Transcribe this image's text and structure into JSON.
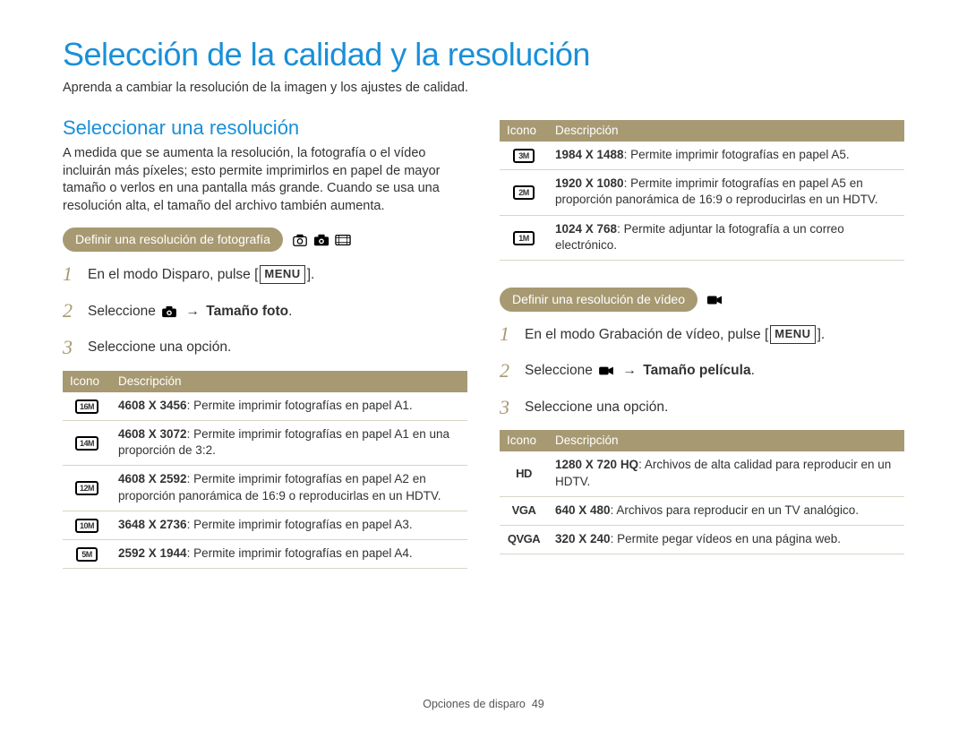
{
  "colors": {
    "accent_blue": "#1a8fd8",
    "tan": "#a79972",
    "border": "#d9d4c5",
    "text": "#333333",
    "bg": "#ffffff"
  },
  "title": "Selección de la calidad y la resolución",
  "subtitle": "Aprenda a cambiar la resolución de la imagen y los ajustes de calidad.",
  "section_heading": "Seleccionar una resolución",
  "section_body": "A medida que se aumenta la resolución, la fotografía o el vídeo incluirán más píxeles; esto permite imprimirlos en papel de mayor tamaño o verlos en una pantalla más grande. Cuando se usa una resolución alta, el tamaño del archivo también aumenta.",
  "photo": {
    "pill": "Definir una resolución de fotografía",
    "steps": {
      "s1_prefix": "En el modo Disparo, pulse [",
      "s1_menu": "MENU",
      "s1_suffix": "].",
      "s2_prefix": "Seleccione ",
      "s2_arrow": "→",
      "s2_bold": "Tamaño foto",
      "s2_suffix": ".",
      "s3": "Seleccione una opción."
    },
    "header_icono": "Icono",
    "header_desc": "Descripción",
    "rows": [
      {
        "icon": "16M",
        "bold": "4608 X 3456",
        "rest": ": Permite imprimir fotografías en papel A1."
      },
      {
        "icon": "14M",
        "bold": "4608 X 3072",
        "rest": ": Permite imprimir fotografías en papel A1 en una proporción de 3:2."
      },
      {
        "icon": "12M",
        "bold": "4608 X 2592",
        "rest": ": Permite imprimir fotografías en papel A2 en proporción panorámica de 16:9 o reproducirlas en un HDTV."
      },
      {
        "icon": "10M",
        "bold": "3648 X 2736",
        "rest": ": Permite imprimir fotografías en papel A3."
      },
      {
        "icon": "5M",
        "bold": "2592 X 1944",
        "rest": ": Permite imprimir fotografías en papel A4."
      }
    ]
  },
  "photo_cont": {
    "header_icono": "Icono",
    "header_desc": "Descripción",
    "rows": [
      {
        "icon": "3M",
        "bold": "1984 X 1488",
        "rest": ": Permite imprimir fotografías en papel A5."
      },
      {
        "icon": "2M",
        "bold": "1920 X 1080",
        "rest": ": Permite imprimir fotografías en papel A5 en proporción panorámica de 16:9 o reproducirlas en un HDTV."
      },
      {
        "icon": "1M",
        "bold": "1024 X 768",
        "rest": ": Permite adjuntar la fotografía a un correo electrónico."
      }
    ]
  },
  "video": {
    "pill": "Definir una resolución de vídeo",
    "steps": {
      "s1_prefix": "En el modo Grabación de vídeo, pulse [",
      "s1_menu": "MENU",
      "s1_suffix": "].",
      "s2_prefix": "Seleccione ",
      "s2_arrow": "→",
      "s2_bold": "Tamaño película",
      "s2_suffix": ".",
      "s3": "Seleccione una opción."
    },
    "header_icono": "Icono",
    "header_desc": "Descripción",
    "rows": [
      {
        "icon": "HD",
        "icon_plain": true,
        "bold": "1280 X 720 HQ",
        "rest": ": Archivos de alta calidad para reproducir en un HDTV."
      },
      {
        "icon": "VGA",
        "icon_plain": true,
        "bold": "640 X 480",
        "rest": ": Archivos para reproducir en un TV analógico."
      },
      {
        "icon": "QVGA",
        "icon_plain": true,
        "bold": "320 X 240",
        "rest": ": Permite pegar vídeos en una página web."
      }
    ]
  },
  "footer": {
    "section": "Opciones de disparo",
    "page": "49"
  }
}
